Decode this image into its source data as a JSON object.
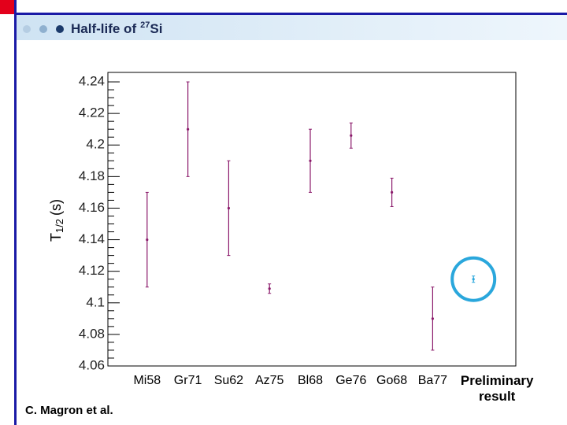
{
  "slide": {
    "title": {
      "text": "Half-life of",
      "sup": "27",
      "element": "Si"
    },
    "footer": "C. Magron et al."
  },
  "chart_data": {
    "type": "errorbar",
    "ylabel": {
      "main": "T",
      "sub": "1/2",
      "unit": "(s)"
    },
    "categories": [
      "Mi58",
      "Gr71",
      "Su62",
      "Az75",
      "Bl68",
      "Ge76",
      "Go68",
      "Ba77",
      "Preliminary result"
    ],
    "series": [
      {
        "color": "#8b1a6b",
        "values": [
          4.14,
          4.21,
          4.16,
          4.109,
          4.19,
          4.206,
          4.17,
          4.09,
          4.115
        ],
        "errors": [
          0.03,
          0.03,
          0.03,
          0.003,
          0.02,
          0.008,
          0.009,
          0.02,
          0.002
        ]
      }
    ],
    "ylim": [
      4.06,
      4.246
    ],
    "yticks": [
      4.06,
      4.08,
      4.1,
      4.12,
      4.14,
      4.16,
      4.18,
      4.2,
      4.22,
      4.24
    ],
    "highlight_index": 8,
    "highlight_color": "#2aa7dc"
  }
}
